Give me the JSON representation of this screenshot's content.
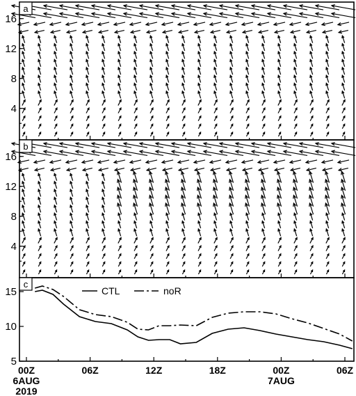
{
  "chart_data": [
    {
      "type": "vector",
      "panel_label": "a",
      "y_ticks": [
        "4",
        "8",
        "12",
        "16"
      ]
    },
    {
      "type": "vector",
      "panel_label": "b",
      "y_ticks": [
        "4",
        "8",
        "12",
        "16"
      ]
    },
    {
      "type": "line",
      "panel_label": "c",
      "y_ticks": [
        "5",
        "10",
        "15"
      ],
      "ylim": [
        5,
        17
      ],
      "x": [
        0.8,
        1.5,
        2.5,
        3.5,
        5.0,
        6.5,
        8.0,
        9.5,
        10.5,
        11.5,
        12.5,
        13.5,
        14.5,
        16.0,
        17.5,
        19.0,
        20.5,
        22.0,
        23.5,
        25.0,
        26.5,
        28.0,
        29.5,
        30.7
      ],
      "series": [
        {
          "name": "CTL",
          "style": "solid",
          "values": [
            15.0,
            15.2,
            14.6,
            13.2,
            11.4,
            10.7,
            10.4,
            9.5,
            8.5,
            8.0,
            8.1,
            8.1,
            7.5,
            7.7,
            9.0,
            9.6,
            9.8,
            9.4,
            8.9,
            8.5,
            8.1,
            7.8,
            7.3,
            6.8
          ]
        },
        {
          "name": "noR",
          "style": "dashdot",
          "values": [
            15.5,
            15.8,
            15.3,
            14.3,
            12.4,
            11.7,
            11.4,
            10.6,
            9.6,
            9.5,
            10.1,
            10.1,
            10.2,
            10.1,
            11.3,
            11.9,
            12.1,
            12.1,
            11.8,
            11.1,
            10.5,
            9.7,
            8.9,
            7.9
          ]
        }
      ],
      "x_ticks": [
        {
          "label": "00Z",
          "sub": [
            "6AUG",
            "2019"
          ]
        },
        {
          "label": "06Z",
          "sub": []
        },
        {
          "label": "12Z",
          "sub": []
        },
        {
          "label": "18Z",
          "sub": []
        },
        {
          "label": "00Z",
          "sub": [
            "7AUG"
          ]
        },
        {
          "label": "06Z",
          "sub": []
        }
      ],
      "x_tick_hours": [
        0,
        6,
        12,
        18,
        24,
        30
      ],
      "legend": [
        "CTL",
        "noR"
      ]
    }
  ]
}
